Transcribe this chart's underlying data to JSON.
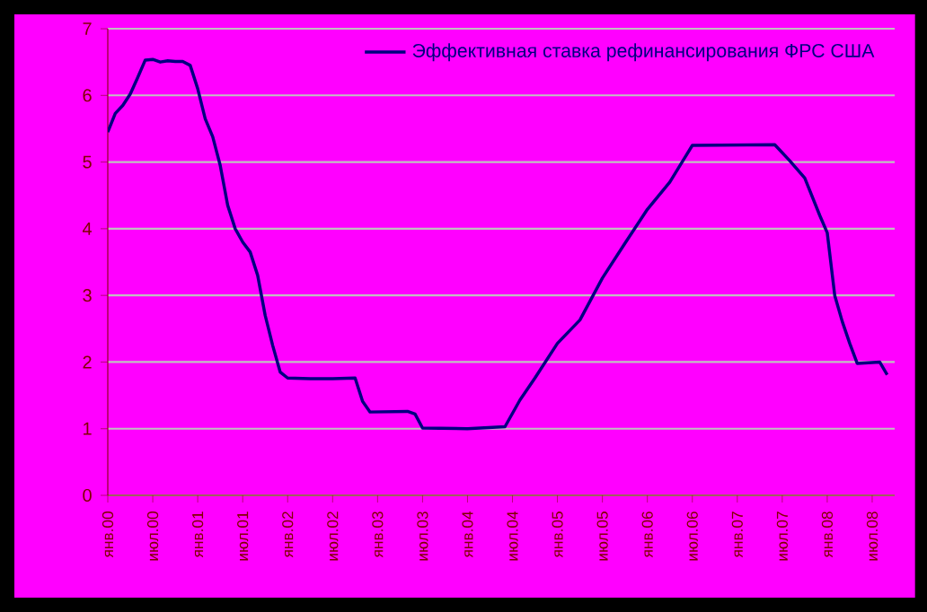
{
  "chart_data": {
    "type": "line",
    "x": [
      "2000-01",
      "2000-02",
      "2000-03",
      "2000-04",
      "2000-05",
      "2000-06",
      "2000-07",
      "2000-08",
      "2000-09",
      "2000-10",
      "2000-11",
      "2000-12",
      "2001-01",
      "2001-02",
      "2001-03",
      "2001-04",
      "2001-05",
      "2001-06",
      "2001-07",
      "2001-08",
      "2001-09",
      "2001-10",
      "2001-11",
      "2001-12",
      "2002-01",
      "2002-04",
      "2002-07",
      "2002-10",
      "2002-11",
      "2002-12",
      "2003-05",
      "2003-06",
      "2003-07",
      "2004-01",
      "2004-06",
      "2004-08",
      "2004-10",
      "2005-01",
      "2005-04",
      "2005-07",
      "2005-10",
      "2006-01",
      "2006-04",
      "2006-07",
      "2007-06",
      "2007-08",
      "2007-10",
      "2007-12",
      "2008-01",
      "2008-02",
      "2008-03",
      "2008-04",
      "2008-05",
      "2008-08",
      "2008-09"
    ],
    "series": [
      {
        "name": "Эффективная ставка рефинансирования ФРС США",
        "color": "#000080",
        "values": [
          5.45,
          5.73,
          5.85,
          6.02,
          6.27,
          6.53,
          6.54,
          6.5,
          6.52,
          6.51,
          6.51,
          6.45,
          6.1,
          5.65,
          5.38,
          4.95,
          4.35,
          4.0,
          3.8,
          3.65,
          3.3,
          2.7,
          2.25,
          1.85,
          1.76,
          1.75,
          1.75,
          1.76,
          1.41,
          1.25,
          1.26,
          1.22,
          1.01,
          1.0,
          1.03,
          1.43,
          1.76,
          2.28,
          2.63,
          3.26,
          3.78,
          4.29,
          4.7,
          5.25,
          5.26,
          5.02,
          4.76,
          4.2,
          3.94,
          3.0,
          2.61,
          2.28,
          1.98,
          2.0,
          1.81
        ]
      }
    ],
    "xlim": [
      "2000-01",
      "2008-10"
    ],
    "xticks": [
      {
        "value": "2000-01",
        "label": "янв.00"
      },
      {
        "value": "2000-07",
        "label": "июл.00"
      },
      {
        "value": "2001-01",
        "label": "янв.01"
      },
      {
        "value": "2001-07",
        "label": "июл.01"
      },
      {
        "value": "2002-01",
        "label": "янв.02"
      },
      {
        "value": "2002-07",
        "label": "июл.02"
      },
      {
        "value": "2003-01",
        "label": "янв.03"
      },
      {
        "value": "2003-07",
        "label": "июл.03"
      },
      {
        "value": "2004-01",
        "label": "янв.04"
      },
      {
        "value": "2004-07",
        "label": "июл.04"
      },
      {
        "value": "2005-01",
        "label": "янв.05"
      },
      {
        "value": "2005-07",
        "label": "июл.05"
      },
      {
        "value": "2006-01",
        "label": "янв.06"
      },
      {
        "value": "2006-07",
        "label": "июл.06"
      },
      {
        "value": "2007-01",
        "label": "янв.07"
      },
      {
        "value": "2007-07",
        "label": "июл.07"
      },
      {
        "value": "2008-01",
        "label": "янв.08"
      },
      {
        "value": "2008-07",
        "label": "июл.08"
      }
    ],
    "ylim": [
      0,
      7
    ],
    "yticks": [
      0,
      1,
      2,
      3,
      4,
      5,
      6,
      7
    ],
    "grid": "y",
    "legend": "top right",
    "marker": "none",
    "line_style": "solid"
  }
}
